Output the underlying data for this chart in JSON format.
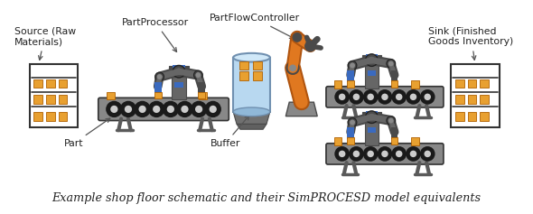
{
  "title": "Example shop floor schematic and their SimPROCESD model equivalents",
  "bg_color": "#ffffff",
  "labels": {
    "source": "Source (Raw\nMaterials)",
    "part_processor": "PartProcessor",
    "part_flow": "PartFlowController",
    "sink": "Sink (Finished\nGoods Inventory)",
    "part": "Part",
    "buffer": "Buffer"
  },
  "colors": {
    "conveyor_gray": "#5a5a5a",
    "conveyor_light": "#888888",
    "conveyor_dark": "#333333",
    "roller_outer": "#1a1a1a",
    "roller_inner": "#cccccc",
    "robot_dark": "#4a4a4a",
    "robot_mid": "#666666",
    "robot_light": "#888888",
    "robot_head_top": "#4466aa",
    "robot_blue_acc": "#3a6abf",
    "robot_arm_blue": "#3a6abf",
    "orange": "#e07820",
    "orange_dark": "#b05510",
    "shelf_frame": "#333333",
    "part_box": "#e8a030",
    "part_box_edge": "#b06000",
    "buffer_fill": "#b8d8f0",
    "buffer_stroke": "#7090b0",
    "buffer_top": "#d0e8f8",
    "buffer_base": "#707070",
    "text_color": "#222222",
    "arrow_color": "#555555",
    "joint_dark": "#222222",
    "joint_mid": "#888888"
  },
  "figsize": [
    5.9,
    2.37
  ],
  "dpi": 100
}
